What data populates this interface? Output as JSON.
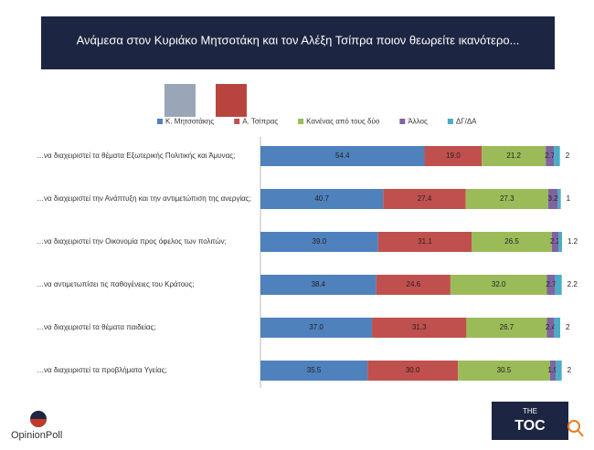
{
  "chart_data": {
    "type": "stacked-bar-horizontal",
    "title": "Ανάμεσα στον Κυριάκο Μητσοτάκη και τον Αλέξη Τσίπρα ποιον θεωρείτε ικανότερο...",
    "categories": [
      "…να διαχειριστεί τα θέματα Εξωτερικής Πολιτικής και Άμυνας;",
      "…να διαχειριστεί την Ανάπτυξη και την αντιμετώπιση της ανεργίας;",
      "…να διαχειριστεί την Οικονομία προς όφελος των πολιτών;",
      "…να αντιμετωπίσει τις παθογένειες του Κράτους;",
      "…να διαχειριστεί τα θέματα παιδείας;",
      "…να διαχειριστεί τα προβλήματα Υγείας;"
    ],
    "series": [
      {
        "name": "Κ. Μητσοτάκης",
        "color": "#4f81bd",
        "values": [
          54.4,
          40.7,
          39.0,
          38.4,
          37.0,
          35.5
        ],
        "value_labels": [
          "54.4",
          "40.7",
          "39.0",
          "38.4",
          "37.0",
          "35.5"
        ]
      },
      {
        "name": "Α. Τσίπρας",
        "color": "#c0504d",
        "values": [
          19.0,
          27.4,
          31.1,
          24.6,
          31.3,
          30.0
        ],
        "value_labels": [
          "19.0",
          "27.4",
          "31.1",
          "24.6",
          "31.3",
          "30.0"
        ]
      },
      {
        "name": "Κανένας από τους δύο",
        "color": "#9bbb59",
        "values": [
          21.2,
          27.3,
          26.5,
          32.0,
          26.7,
          30.5
        ],
        "value_labels": [
          "21.2",
          "27.3",
          "26.5",
          "32.0",
          "26.7",
          "30.5"
        ]
      },
      {
        "name": "Άλλος",
        "color": "#8064a2",
        "values": [
          2.7,
          3.2,
          2.2,
          2.7,
          2.4,
          1.9
        ],
        "value_labels": [
          "2.7",
          "3.2",
          "2.2",
          "2.7",
          "2.4",
          "1.9"
        ]
      },
      {
        "name": "ΔΓ/ΔΑ",
        "color": "#4bacc6",
        "values": [
          2,
          1,
          1.2,
          2.2,
          2,
          2
        ],
        "value_labels": [
          "2",
          "1",
          "1.2",
          "2.2",
          "2",
          "2"
        ]
      }
    ]
  },
  "logos": {
    "left": "OpinionPoll",
    "right_top": "THE",
    "right": "TOC"
  }
}
